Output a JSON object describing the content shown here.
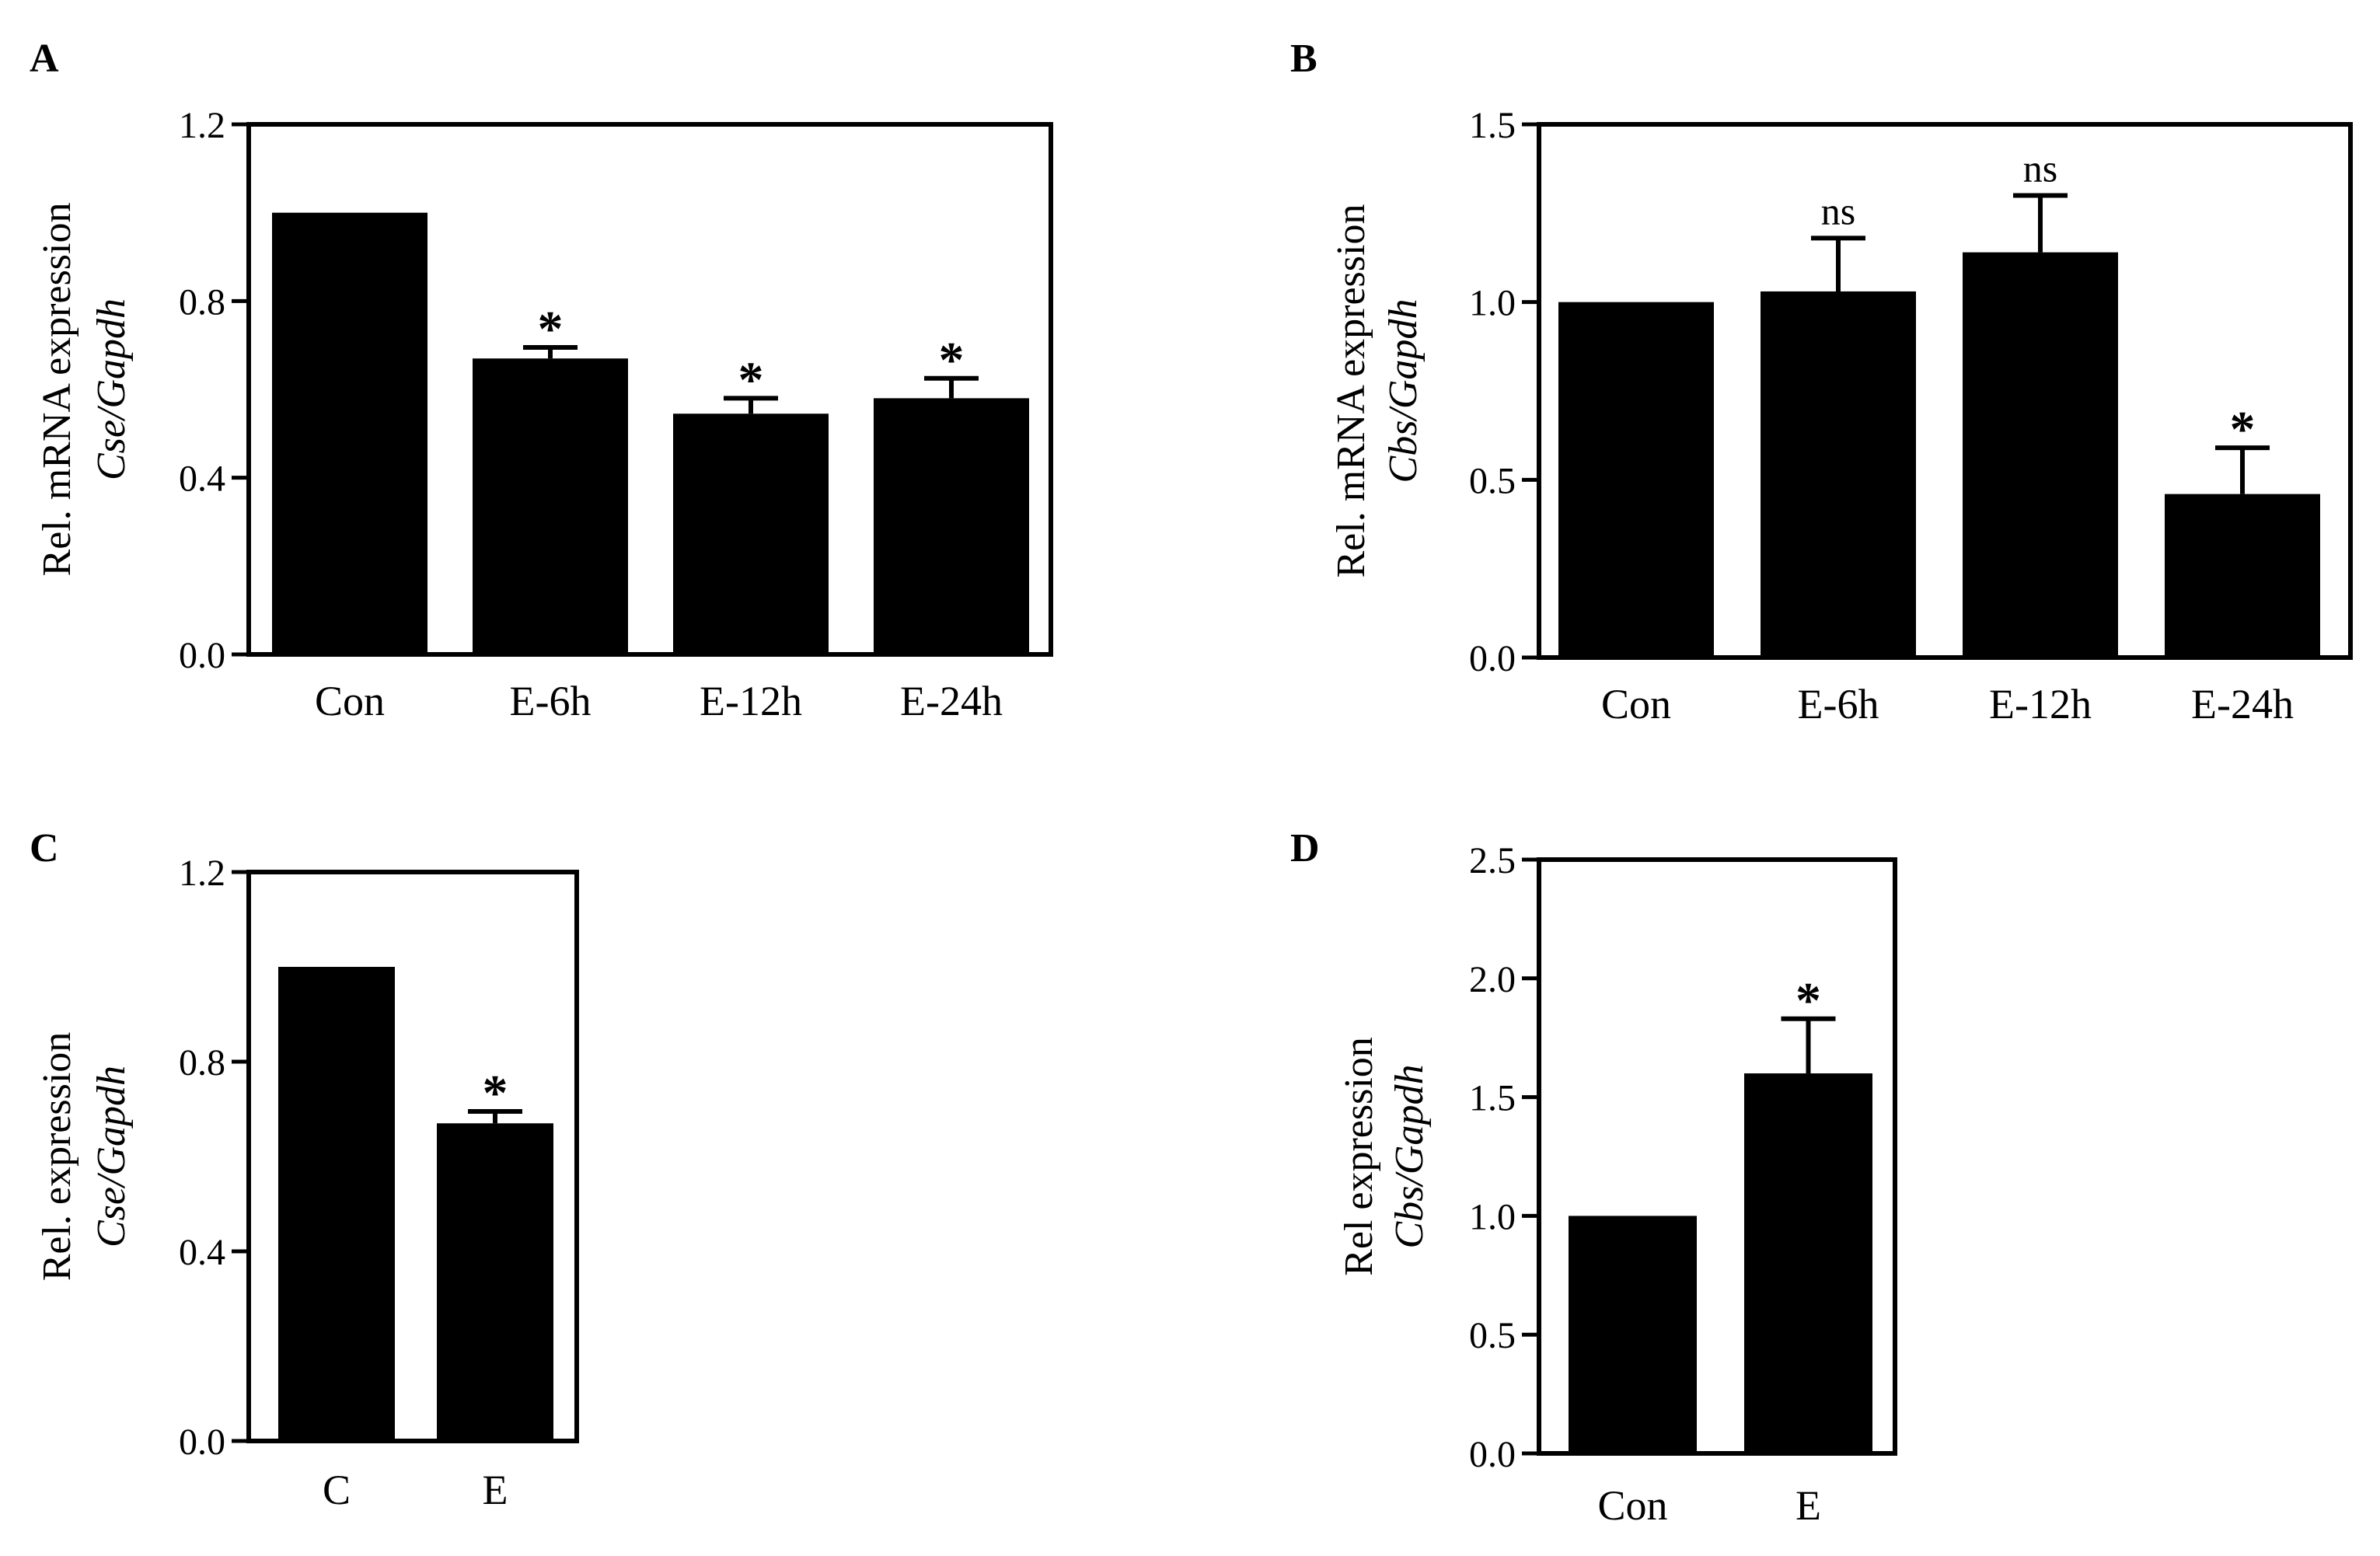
{
  "colors": {
    "bar": "#000000",
    "axis": "#000000",
    "background": "#ffffff"
  },
  "chart_data": [
    {
      "panel": "A",
      "type": "bar",
      "ylabel": "Rel. mRNA expression",
      "ylabel_sub": "Cse/Gapdh",
      "ylim": [
        0,
        1.2
      ],
      "yticks": [
        "0.0",
        "0.4",
        "0.8",
        "1.2"
      ],
      "ytick_values": [
        0,
        0.4,
        0.8,
        1.2
      ],
      "categories": [
        "Con",
        "E-6h",
        "E-12h",
        "E-24h"
      ],
      "values": [
        1.0,
        0.67,
        0.545,
        0.58
      ],
      "errors": [
        0,
        0.025,
        0.035,
        0.045
      ],
      "annotations": [
        "",
        "*",
        "*",
        "*"
      ]
    },
    {
      "panel": "B",
      "type": "bar",
      "ylabel": "Rel. mRNA expression",
      "ylabel_sub": "Cbs/Gapdh",
      "ylim": [
        0,
        1.5
      ],
      "yticks": [
        "0.0",
        "0.5",
        "1.0",
        "1.5"
      ],
      "ytick_values": [
        0,
        0.5,
        1.0,
        1.5
      ],
      "categories": [
        "Con",
        "E-6h",
        "E-12h",
        "E-24h"
      ],
      "values": [
        1.0,
        1.03,
        1.14,
        0.46
      ],
      "errors": [
        0,
        0.15,
        0.16,
        0.13
      ],
      "annotations": [
        "",
        "ns",
        "ns",
        "*"
      ]
    },
    {
      "panel": "C",
      "type": "bar",
      "ylabel": "Rel. expression",
      "ylabel_sub": "Cse/Gapdh",
      "ylim": [
        0,
        1.2
      ],
      "yticks": [
        "0.0",
        "0.4",
        "0.8",
        "1.2"
      ],
      "ytick_values": [
        0,
        0.4,
        0.8,
        1.2
      ],
      "categories": [
        "C",
        "E"
      ],
      "values": [
        1.0,
        0.67
      ],
      "errors": [
        0,
        0.025
      ],
      "annotations": [
        "",
        "*"
      ]
    },
    {
      "panel": "D",
      "type": "bar",
      "ylabel": "Rel expression",
      "ylabel_sub": "Cbs/Gapdh",
      "ylim": [
        0,
        2.5
      ],
      "yticks": [
        "0.0",
        "0.5",
        "1.0",
        "1.5",
        "2.0",
        "2.5"
      ],
      "ytick_values": [
        0,
        0.5,
        1.0,
        1.5,
        2.0,
        2.5
      ],
      "categories": [
        "Con",
        "E"
      ],
      "values": [
        1.0,
        1.6
      ],
      "errors": [
        0,
        0.23
      ],
      "annotations": [
        "",
        "*"
      ]
    }
  ]
}
